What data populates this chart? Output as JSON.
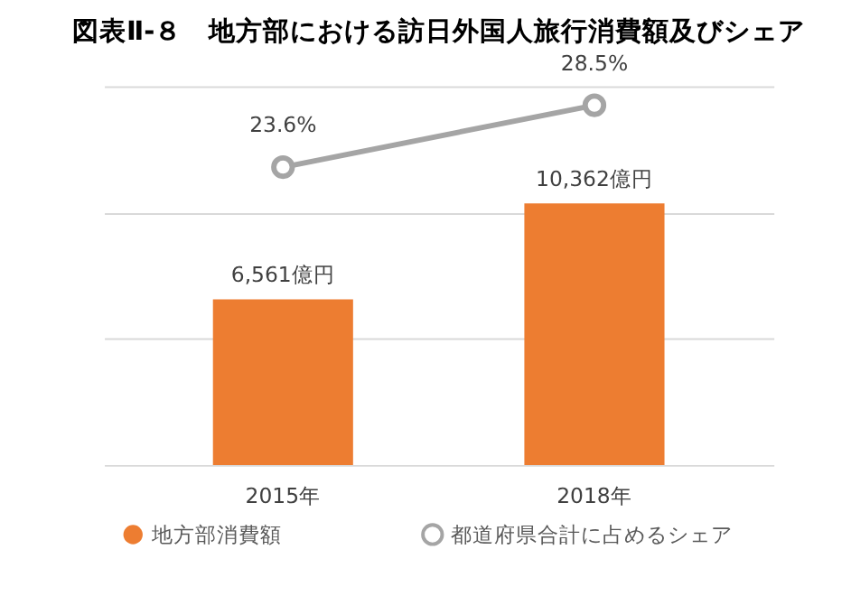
{
  "chart_data": {
    "type": "bar",
    "title": "図表Ⅱ‐８　地方部における訪日外国人旅行消費額及びシェア",
    "categories": [
      "2015年",
      "2018年"
    ],
    "series": [
      {
        "name": "地方部消費額",
        "color": "#ed7d31",
        "values": [
          6561,
          10362
        ],
        "value_labels": [
          "6,561億円",
          "10,362億円"
        ]
      },
      {
        "name": "都道府県合計に占めるシェア",
        "type": "line",
        "axis": "y2",
        "color": "#a5a5a5",
        "values": [
          23.6,
          28.5
        ],
        "value_labels": [
          "23.6%",
          "28.5%"
        ],
        "marker": "circle"
      }
    ],
    "ylim": [
      0,
      15000
    ],
    "yticks": [
      {
        "value": 0,
        "label": null
      },
      {
        "value": 5000,
        "label": null
      },
      {
        "value": 10000,
        "label": null
      },
      {
        "value": 15000,
        "label": null
      }
    ],
    "y2lim": [
      0,
      30
    ],
    "grid": "y",
    "tick_labels": "x",
    "legend": "bottom"
  }
}
